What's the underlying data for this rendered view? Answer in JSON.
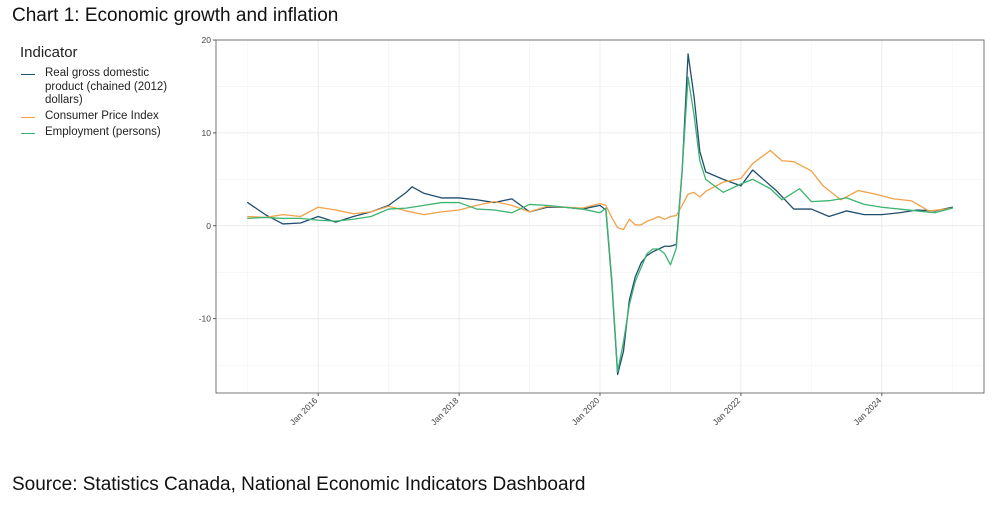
{
  "title": "Chart 1: Economic growth and inflation",
  "source": "Source: Statistics Canada, National Economic Indicators Dashboard",
  "chart_data": {
    "type": "line",
    "title": "Chart 1: Economic growth and inflation",
    "xlabel": "",
    "ylabel": "",
    "legend_title": "Indicator",
    "legend_placement": "left",
    "grid": true,
    "xlim": [
      "2015-01",
      "2025-01"
    ],
    "ylim": [
      -18,
      20
    ],
    "y_ticks": [
      -10,
      0,
      10,
      20
    ],
    "x_ticks": [
      {
        "date": "2016-01",
        "label": "Jan 2016"
      },
      {
        "date": "2018-01",
        "label": "Jan 2018"
      },
      {
        "date": "2020-01",
        "label": "Jan 2020"
      },
      {
        "date": "2022-01",
        "label": "Jan 2022"
      },
      {
        "date": "2024-01",
        "label": "Jan 2024"
      }
    ],
    "series": [
      {
        "name": "Real gross domestic product (chained (2012) dollars)",
        "color": "#1f4e6e",
        "points": [
          [
            "2015-01",
            2.5
          ],
          [
            "2015-04",
            1.2
          ],
          [
            "2015-07",
            0.2
          ],
          [
            "2015-10",
            0.3
          ],
          [
            "2016-01",
            1.0
          ],
          [
            "2016-04",
            0.4
          ],
          [
            "2016-07",
            1.0
          ],
          [
            "2016-10",
            1.5
          ],
          [
            "2017-01",
            2.2
          ],
          [
            "2017-04",
            3.6
          ],
          [
            "2017-05",
            4.2
          ],
          [
            "2017-07",
            3.5
          ],
          [
            "2017-10",
            3.0
          ],
          [
            "2018-01",
            3.0
          ],
          [
            "2018-04",
            2.8
          ],
          [
            "2018-07",
            2.5
          ],
          [
            "2018-10",
            2.9
          ],
          [
            "2019-01",
            1.5
          ],
          [
            "2019-04",
            2.0
          ],
          [
            "2019-07",
            2.0
          ],
          [
            "2019-10",
            1.8
          ],
          [
            "2020-01",
            2.2
          ],
          [
            "2020-02",
            1.7
          ],
          [
            "2020-03",
            -6.0
          ],
          [
            "2020-04",
            -16.0
          ],
          [
            "2020-05",
            -13.5
          ],
          [
            "2020-06",
            -8.0
          ],
          [
            "2020-07",
            -5.5
          ],
          [
            "2020-08",
            -4.0
          ],
          [
            "2020-09",
            -3.2
          ],
          [
            "2020-10",
            -2.8
          ],
          [
            "2020-11",
            -2.5
          ],
          [
            "2020-12",
            -2.2
          ],
          [
            "2021-01",
            -2.2
          ],
          [
            "2021-02",
            -2.0
          ],
          [
            "2021-03",
            6.0
          ],
          [
            "2021-04",
            18.5
          ],
          [
            "2021-05",
            14.0
          ],
          [
            "2021-06",
            8.0
          ],
          [
            "2021-07",
            5.8
          ],
          [
            "2021-10",
            5.0
          ],
          [
            "2022-01",
            4.3
          ],
          [
            "2022-03",
            6.0
          ],
          [
            "2022-07",
            3.8
          ],
          [
            "2022-10",
            1.8
          ],
          [
            "2023-01",
            1.8
          ],
          [
            "2023-04",
            1.0
          ],
          [
            "2023-07",
            1.6
          ],
          [
            "2023-10",
            1.2
          ],
          [
            "2024-01",
            1.2
          ],
          [
            "2024-04",
            1.4
          ],
          [
            "2024-07",
            1.7
          ],
          [
            "2024-10",
            1.6
          ],
          [
            "2025-01",
            2.0
          ]
        ]
      },
      {
        "name": "Consumer Price Index",
        "color": "#f0a24a",
        "points": [
          [
            "2015-01",
            1.0
          ],
          [
            "2015-04",
            0.9
          ],
          [
            "2015-07",
            1.2
          ],
          [
            "2015-10",
            1.0
          ],
          [
            "2016-01",
            2.0
          ],
          [
            "2016-04",
            1.7
          ],
          [
            "2016-07",
            1.3
          ],
          [
            "2016-10",
            1.5
          ],
          [
            "2017-01",
            2.1
          ],
          [
            "2017-04",
            1.6
          ],
          [
            "2017-07",
            1.2
          ],
          [
            "2017-10",
            1.5
          ],
          [
            "2018-01",
            1.7
          ],
          [
            "2018-04",
            2.2
          ],
          [
            "2018-07",
            2.6
          ],
          [
            "2018-10",
            2.2
          ],
          [
            "2019-01",
            1.5
          ],
          [
            "2019-04",
            2.1
          ],
          [
            "2019-07",
            2.0
          ],
          [
            "2019-10",
            1.9
          ],
          [
            "2020-01",
            2.4
          ],
          [
            "2020-02",
            2.2
          ],
          [
            "2020-03",
            0.9
          ],
          [
            "2020-04",
            -0.2
          ],
          [
            "2020-05",
            -0.4
          ],
          [
            "2020-06",
            0.7
          ],
          [
            "2020-07",
            0.1
          ],
          [
            "2020-08",
            0.1
          ],
          [
            "2020-09",
            0.5
          ],
          [
            "2020-10",
            0.7
          ],
          [
            "2020-11",
            1.0
          ],
          [
            "2020-12",
            0.7
          ],
          [
            "2021-01",
            1.0
          ],
          [
            "2021-02",
            1.1
          ],
          [
            "2021-03",
            2.2
          ],
          [
            "2021-04",
            3.4
          ],
          [
            "2021-05",
            3.6
          ],
          [
            "2021-06",
            3.1
          ],
          [
            "2021-07",
            3.7
          ],
          [
            "2021-10",
            4.7
          ],
          [
            "2022-01",
            5.1
          ],
          [
            "2022-03",
            6.7
          ],
          [
            "2022-06",
            8.1
          ],
          [
            "2022-08",
            7.0
          ],
          [
            "2022-10",
            6.9
          ],
          [
            "2023-01",
            5.9
          ],
          [
            "2023-03",
            4.3
          ],
          [
            "2023-06",
            2.8
          ],
          [
            "2023-09",
            3.8
          ],
          [
            "2023-12",
            3.4
          ],
          [
            "2024-03",
            2.9
          ],
          [
            "2024-06",
            2.7
          ],
          [
            "2024-09",
            1.6
          ],
          [
            "2024-12",
            1.8
          ],
          [
            "2025-01",
            1.9
          ]
        ]
      },
      {
        "name": "Employment (persons)",
        "color": "#3cb371",
        "points": [
          [
            "2015-01",
            0.8
          ],
          [
            "2015-04",
            0.9
          ],
          [
            "2015-07",
            0.8
          ],
          [
            "2015-10",
            0.8
          ],
          [
            "2016-01",
            0.6
          ],
          [
            "2016-04",
            0.5
          ],
          [
            "2016-07",
            0.7
          ],
          [
            "2016-10",
            1.0
          ],
          [
            "2017-01",
            1.8
          ],
          [
            "2017-04",
            1.9
          ],
          [
            "2017-07",
            2.2
          ],
          [
            "2017-10",
            2.5
          ],
          [
            "2018-01",
            2.5
          ],
          [
            "2018-04",
            1.8
          ],
          [
            "2018-07",
            1.7
          ],
          [
            "2018-10",
            1.4
          ],
          [
            "2019-01",
            2.3
          ],
          [
            "2019-04",
            2.2
          ],
          [
            "2019-07",
            2.0
          ],
          [
            "2019-10",
            1.8
          ],
          [
            "2020-01",
            1.4
          ],
          [
            "2020-02",
            1.9
          ],
          [
            "2020-03",
            -5.7
          ],
          [
            "2020-04",
            -15.7
          ],
          [
            "2020-05",
            -12.5
          ],
          [
            "2020-06",
            -8.5
          ],
          [
            "2020-07",
            -6.0
          ],
          [
            "2020-08",
            -4.5
          ],
          [
            "2020-09",
            -3.0
          ],
          [
            "2020-10",
            -2.5
          ],
          [
            "2020-11",
            -2.5
          ],
          [
            "2020-12",
            -3.0
          ],
          [
            "2021-01",
            -4.2
          ],
          [
            "2021-02",
            -2.4
          ],
          [
            "2021-03",
            6.0
          ],
          [
            "2021-04",
            16.0
          ],
          [
            "2021-05",
            12.0
          ],
          [
            "2021-06",
            7.0
          ],
          [
            "2021-07",
            5.0
          ],
          [
            "2021-10",
            3.6
          ],
          [
            "2022-01",
            4.5
          ],
          [
            "2022-03",
            5.0
          ],
          [
            "2022-06",
            4.0
          ],
          [
            "2022-08",
            2.8
          ],
          [
            "2022-11",
            4.0
          ],
          [
            "2023-01",
            2.6
          ],
          [
            "2023-04",
            2.7
          ],
          [
            "2023-07",
            3.0
          ],
          [
            "2023-10",
            2.3
          ],
          [
            "2024-01",
            2.0
          ],
          [
            "2024-04",
            1.8
          ],
          [
            "2024-07",
            1.6
          ],
          [
            "2024-10",
            1.4
          ],
          [
            "2025-01",
            1.9
          ]
        ]
      }
    ]
  }
}
